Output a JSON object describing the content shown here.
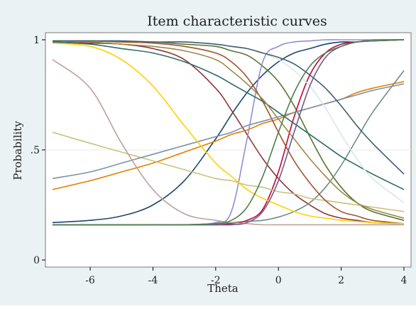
{
  "chart_data": {
    "type": "line",
    "title": "Item characteristic curves",
    "xlabel": "Theta",
    "ylabel": "Probability",
    "xlim": [
      -7.2,
      4
    ],
    "ylim": [
      0,
      1
    ],
    "xticks": [
      {
        "value": -6,
        "label": "-6"
      },
      {
        "value": -4,
        "label": "-4"
      },
      {
        "value": -2,
        "label": "-2"
      },
      {
        "value": 0,
        "label": "0"
      },
      {
        "value": 2,
        "label": "2"
      },
      {
        "value": 4,
        "label": "4"
      }
    ],
    "yticks": [
      {
        "value": 0,
        "label": "0"
      },
      {
        "value": 0.5,
        "label": ".5"
      },
      {
        "value": 1,
        "label": "1"
      }
    ],
    "grid": "horizontal",
    "legend": "none",
    "x": [
      -7.2,
      -6.0,
      -5.0,
      -4.0,
      -3.0,
      -2.0,
      -1.5,
      -1.0,
      -0.5,
      0.0,
      0.5,
      1.0,
      1.5,
      2.0,
      2.5,
      3.0,
      4.0
    ],
    "series": [
      {
        "color": "#1a476f",
        "values": [
          0.17,
          0.18,
          0.2,
          0.25,
          0.36,
          0.55,
          0.66,
          0.76,
          0.84,
          0.9,
          0.94,
          0.96,
          0.98,
          0.99,
          0.99,
          1.0,
          1.0
        ]
      },
      {
        "color": "#90353b",
        "values": [
          0.99,
          0.985,
          0.98,
          0.96,
          0.91,
          0.78,
          0.68,
          0.57,
          0.46,
          0.37,
          0.3,
          0.25,
          0.21,
          0.19,
          0.18,
          0.17,
          0.165
        ]
      },
      {
        "color": "#55752f",
        "values": [
          0.995,
          0.995,
          0.99,
          0.99,
          0.98,
          0.97,
          0.95,
          0.93,
          0.88,
          0.81,
          0.7,
          0.56,
          0.43,
          0.33,
          0.26,
          0.22,
          0.18
        ]
      },
      {
        "color": "#e37e00",
        "values": [
          0.32,
          0.36,
          0.4,
          0.44,
          0.49,
          0.54,
          0.57,
          0.59,
          0.62,
          0.64,
          0.67,
          0.69,
          0.71,
          0.73,
          0.76,
          0.78,
          0.81
        ]
      },
      {
        "color": "#6e8e84",
        "values": [
          0.16,
          0.16,
          0.16,
          0.16,
          0.16,
          0.165,
          0.17,
          0.175,
          0.18,
          0.195,
          0.22,
          0.26,
          0.33,
          0.43,
          0.55,
          0.67,
          0.86
        ]
      },
      {
        "color": "#c10534",
        "values": [
          0.16,
          0.16,
          0.16,
          0.16,
          0.16,
          0.16,
          0.165,
          0.18,
          0.23,
          0.4,
          0.65,
          0.84,
          0.94,
          0.98,
          0.99,
          0.995,
          1.0
        ]
      },
      {
        "color": "#938dd2",
        "values": [
          0.16,
          0.16,
          0.16,
          0.16,
          0.16,
          0.17,
          0.22,
          0.55,
          0.9,
          0.97,
          0.99,
          0.995,
          1.0,
          1.0,
          1.0,
          1.0,
          1.0
        ]
      },
      {
        "color": "#cac27e",
        "values": [
          0.58,
          0.53,
          0.49,
          0.45,
          0.41,
          0.37,
          0.36,
          0.34,
          0.33,
          0.31,
          0.3,
          0.28,
          0.27,
          0.26,
          0.25,
          0.24,
          0.22
        ]
      },
      {
        "color": "#a0522d",
        "values": [
          0.995,
          0.995,
          0.99,
          0.985,
          0.97,
          0.94,
          0.9,
          0.83,
          0.72,
          0.58,
          0.45,
          0.35,
          0.27,
          0.22,
          0.2,
          0.18,
          0.165
        ]
      },
      {
        "color": "#7b92a8",
        "values": [
          0.37,
          0.4,
          0.44,
          0.48,
          0.52,
          0.56,
          0.58,
          0.61,
          0.63,
          0.65,
          0.67,
          0.69,
          0.71,
          0.73,
          0.75,
          0.77,
          0.8
        ]
      },
      {
        "color": "#2d6d66",
        "values": [
          0.99,
          0.98,
          0.96,
          0.94,
          0.9,
          0.84,
          0.8,
          0.76,
          0.72,
          0.67,
          0.62,
          0.57,
          0.52,
          0.47,
          0.43,
          0.39,
          0.32
        ]
      },
      {
        "color": "#9c8847",
        "values": [
          0.995,
          0.99,
          0.98,
          0.97,
          0.95,
          0.91,
          0.86,
          0.8,
          0.73,
          0.64,
          0.55,
          0.46,
          0.38,
          0.31,
          0.26,
          0.23,
          0.19
        ]
      },
      {
        "color": "#bfa19c",
        "values": [
          0.91,
          0.78,
          0.53,
          0.32,
          0.21,
          0.18,
          0.17,
          0.165,
          0.16,
          0.16,
          0.16,
          0.16,
          0.16,
          0.16,
          0.16,
          0.16,
          0.16
        ]
      },
      {
        "color": "#ffd200",
        "values": [
          0.985,
          0.97,
          0.91,
          0.79,
          0.61,
          0.44,
          0.38,
          0.32,
          0.28,
          0.25,
          0.22,
          0.2,
          0.19,
          0.18,
          0.175,
          0.17,
          0.165
        ]
      },
      {
        "color": "#d9e6eb",
        "values": [
          0.995,
          0.995,
          0.995,
          0.99,
          0.99,
          0.98,
          0.97,
          0.96,
          0.94,
          0.91,
          0.86,
          0.79,
          0.69,
          0.57,
          0.46,
          0.37,
          0.26
        ]
      },
      {
        "color": "#3e5f6e",
        "values": [
          0.995,
          0.995,
          0.995,
          0.99,
          0.99,
          0.98,
          0.97,
          0.96,
          0.94,
          0.92,
          0.89,
          0.84,
          0.78,
          0.7,
          0.61,
          0.53,
          0.39
        ]
      },
      {
        "color": "#6f5a8c",
        "values": [
          0.16,
          0.16,
          0.16,
          0.16,
          0.16,
          0.16,
          0.16,
          0.17,
          0.22,
          0.36,
          0.58,
          0.79,
          0.92,
          0.97,
          0.99,
          0.995,
          1.0
        ]
      },
      {
        "color": "#4f7f4f",
        "values": [
          0.16,
          0.16,
          0.16,
          0.16,
          0.16,
          0.165,
          0.18,
          0.24,
          0.38,
          0.58,
          0.76,
          0.88,
          0.94,
          0.97,
          0.99,
          0.995,
          1.0
        ]
      }
    ]
  }
}
